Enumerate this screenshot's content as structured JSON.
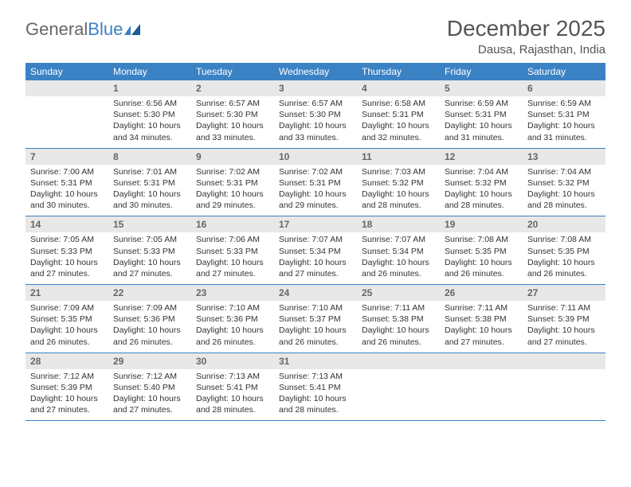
{
  "brand": {
    "first": "General",
    "second": "Blue"
  },
  "title": "December 2025",
  "location": "Dausa, Rajasthan, India",
  "weekdays": [
    "Sunday",
    "Monday",
    "Tuesday",
    "Wednesday",
    "Thursday",
    "Friday",
    "Saturday"
  ],
  "colors": {
    "header_bg": "#3b82c4",
    "header_text": "#ffffff",
    "day_bg": "#e8e8e8"
  },
  "weeks": [
    [
      {
        "empty": true
      },
      {
        "num": "1",
        "sunrise": "6:56 AM",
        "sunset": "5:30 PM",
        "daylight": "10 hours and 34 minutes."
      },
      {
        "num": "2",
        "sunrise": "6:57 AM",
        "sunset": "5:30 PM",
        "daylight": "10 hours and 33 minutes."
      },
      {
        "num": "3",
        "sunrise": "6:57 AM",
        "sunset": "5:30 PM",
        "daylight": "10 hours and 33 minutes."
      },
      {
        "num": "4",
        "sunrise": "6:58 AM",
        "sunset": "5:31 PM",
        "daylight": "10 hours and 32 minutes."
      },
      {
        "num": "5",
        "sunrise": "6:59 AM",
        "sunset": "5:31 PM",
        "daylight": "10 hours and 31 minutes."
      },
      {
        "num": "6",
        "sunrise": "6:59 AM",
        "sunset": "5:31 PM",
        "daylight": "10 hours and 31 minutes."
      }
    ],
    [
      {
        "num": "7",
        "sunrise": "7:00 AM",
        "sunset": "5:31 PM",
        "daylight": "10 hours and 30 minutes."
      },
      {
        "num": "8",
        "sunrise": "7:01 AM",
        "sunset": "5:31 PM",
        "daylight": "10 hours and 30 minutes."
      },
      {
        "num": "9",
        "sunrise": "7:02 AM",
        "sunset": "5:31 PM",
        "daylight": "10 hours and 29 minutes."
      },
      {
        "num": "10",
        "sunrise": "7:02 AM",
        "sunset": "5:31 PM",
        "daylight": "10 hours and 29 minutes."
      },
      {
        "num": "11",
        "sunrise": "7:03 AM",
        "sunset": "5:32 PM",
        "daylight": "10 hours and 28 minutes."
      },
      {
        "num": "12",
        "sunrise": "7:04 AM",
        "sunset": "5:32 PM",
        "daylight": "10 hours and 28 minutes."
      },
      {
        "num": "13",
        "sunrise": "7:04 AM",
        "sunset": "5:32 PM",
        "daylight": "10 hours and 28 minutes."
      }
    ],
    [
      {
        "num": "14",
        "sunrise": "7:05 AM",
        "sunset": "5:33 PM",
        "daylight": "10 hours and 27 minutes."
      },
      {
        "num": "15",
        "sunrise": "7:05 AM",
        "sunset": "5:33 PM",
        "daylight": "10 hours and 27 minutes."
      },
      {
        "num": "16",
        "sunrise": "7:06 AM",
        "sunset": "5:33 PM",
        "daylight": "10 hours and 27 minutes."
      },
      {
        "num": "17",
        "sunrise": "7:07 AM",
        "sunset": "5:34 PM",
        "daylight": "10 hours and 27 minutes."
      },
      {
        "num": "18",
        "sunrise": "7:07 AM",
        "sunset": "5:34 PM",
        "daylight": "10 hours and 26 minutes."
      },
      {
        "num": "19",
        "sunrise": "7:08 AM",
        "sunset": "5:35 PM",
        "daylight": "10 hours and 26 minutes."
      },
      {
        "num": "20",
        "sunrise": "7:08 AM",
        "sunset": "5:35 PM",
        "daylight": "10 hours and 26 minutes."
      }
    ],
    [
      {
        "num": "21",
        "sunrise": "7:09 AM",
        "sunset": "5:35 PM",
        "daylight": "10 hours and 26 minutes."
      },
      {
        "num": "22",
        "sunrise": "7:09 AM",
        "sunset": "5:36 PM",
        "daylight": "10 hours and 26 minutes."
      },
      {
        "num": "23",
        "sunrise": "7:10 AM",
        "sunset": "5:36 PM",
        "daylight": "10 hours and 26 minutes."
      },
      {
        "num": "24",
        "sunrise": "7:10 AM",
        "sunset": "5:37 PM",
        "daylight": "10 hours and 26 minutes."
      },
      {
        "num": "25",
        "sunrise": "7:11 AM",
        "sunset": "5:38 PM",
        "daylight": "10 hours and 26 minutes."
      },
      {
        "num": "26",
        "sunrise": "7:11 AM",
        "sunset": "5:38 PM",
        "daylight": "10 hours and 27 minutes."
      },
      {
        "num": "27",
        "sunrise": "7:11 AM",
        "sunset": "5:39 PM",
        "daylight": "10 hours and 27 minutes."
      }
    ],
    [
      {
        "num": "28",
        "sunrise": "7:12 AM",
        "sunset": "5:39 PM",
        "daylight": "10 hours and 27 minutes."
      },
      {
        "num": "29",
        "sunrise": "7:12 AM",
        "sunset": "5:40 PM",
        "daylight": "10 hours and 27 minutes."
      },
      {
        "num": "30",
        "sunrise": "7:13 AM",
        "sunset": "5:41 PM",
        "daylight": "10 hours and 28 minutes."
      },
      {
        "num": "31",
        "sunrise": "7:13 AM",
        "sunset": "5:41 PM",
        "daylight": "10 hours and 28 minutes."
      },
      {
        "empty": true
      },
      {
        "empty": true
      },
      {
        "empty": true
      }
    ]
  ],
  "labels": {
    "sunrise": "Sunrise:",
    "sunset": "Sunset:",
    "daylight": "Daylight:"
  }
}
